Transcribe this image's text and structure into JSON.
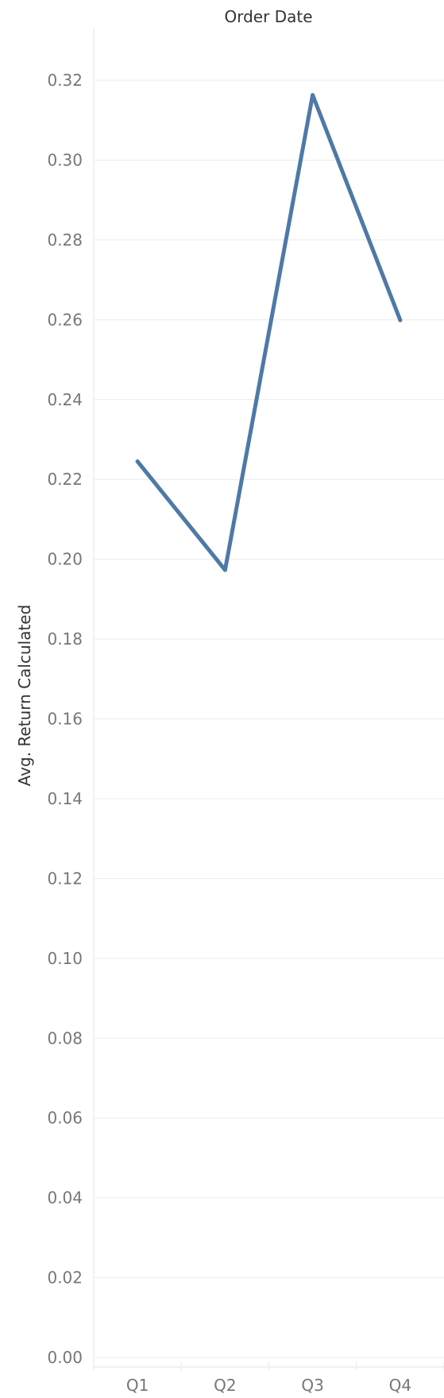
{
  "chart_data": {
    "type": "line",
    "title": "Order Date",
    "xlabel": "",
    "ylabel": "Avg. Return Calculated",
    "categories": [
      "Q1",
      "Q2",
      "Q3",
      "Q4"
    ],
    "series": [
      {
        "values": [
          0.2245,
          0.1973,
          0.3163,
          0.2599
        ]
      }
    ],
    "yticks": [
      "0.00",
      "0.02",
      "0.04",
      "0.06",
      "0.08",
      "0.10",
      "0.12",
      "0.14",
      "0.16",
      "0.18",
      "0.20",
      "0.22",
      "0.24",
      "0.26",
      "0.28",
      "0.30",
      "0.32"
    ],
    "ylim": [
      0,
      0.32
    ],
    "grid": true,
    "colors": {
      "series": "#4e79a7"
    }
  }
}
